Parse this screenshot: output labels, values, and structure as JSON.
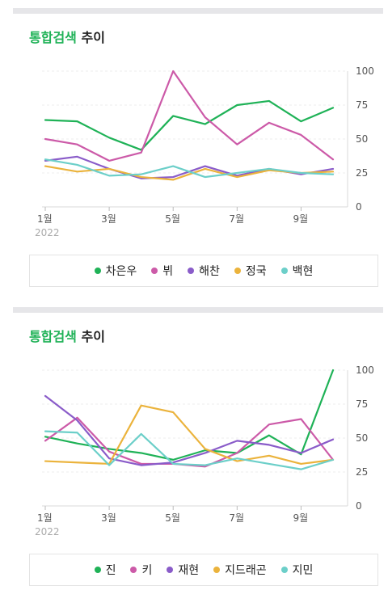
{
  "colors": {
    "green": "#1fb257",
    "pink": "#cc5aa8",
    "purple": "#8a5cc9",
    "yellow": "#ebb33c",
    "teal": "#6ccfc9"
  },
  "chart_data": [
    {
      "type": "line",
      "title": "통합검색 추이",
      "title_accent": "통합검색",
      "title_rest": "추이",
      "ylim": [
        0,
        100
      ],
      "yticks": [
        0,
        25,
        50,
        75,
        100
      ],
      "x": [
        1,
        2,
        3,
        4,
        5,
        6,
        7,
        8,
        9,
        10
      ],
      "xtick_positions": [
        1,
        3,
        5,
        7,
        9
      ],
      "xtick_labels": [
        "1월",
        "3월",
        "5월",
        "7월",
        "9월"
      ],
      "xtick_sublabel": "2022",
      "series": [
        {
          "name": "차은우",
          "color": "#1fb257",
          "values": [
            64,
            63,
            51,
            42,
            67,
            61,
            75,
            78,
            63,
            73
          ]
        },
        {
          "name": "뷔",
          "color": "#cc5aa8",
          "values": [
            50,
            46,
            34,
            40,
            100,
            66,
            46,
            62,
            53,
            35
          ]
        },
        {
          "name": "해찬",
          "color": "#8a5cc9",
          "values": [
            34,
            37,
            28,
            21,
            22,
            30,
            23,
            28,
            24,
            28
          ]
        },
        {
          "name": "정국",
          "color": "#ebb33c",
          "values": [
            30,
            26,
            28,
            22,
            20,
            28,
            22,
            27,
            25,
            26
          ]
        },
        {
          "name": "백현",
          "color": "#6ccfc9",
          "values": [
            35,
            31,
            23,
            24,
            30,
            22,
            25,
            28,
            25,
            24
          ]
        }
      ]
    },
    {
      "type": "line",
      "title": "통합검색 추이",
      "title_accent": "통합검색",
      "title_rest": "추이",
      "ylim": [
        0,
        100
      ],
      "yticks": [
        0,
        25,
        50,
        75,
        100
      ],
      "x": [
        1,
        2,
        3,
        4,
        5,
        6,
        7,
        8,
        9,
        10
      ],
      "xtick_positions": [
        1,
        3,
        5,
        7,
        9
      ],
      "xtick_labels": [
        "1월",
        "3월",
        "5월",
        "7월",
        "9월"
      ],
      "xtick_sublabel": "2022",
      "series": [
        {
          "name": "진",
          "color": "#1fb257",
          "values": [
            51,
            46,
            42,
            39,
            34,
            41,
            39,
            52,
            38,
            100
          ]
        },
        {
          "name": "키",
          "color": "#cc5aa8",
          "values": [
            48,
            65,
            40,
            31,
            31,
            29,
            39,
            60,
            64,
            34
          ]
        },
        {
          "name": "재현",
          "color": "#8a5cc9",
          "values": [
            81,
            63,
            35,
            30,
            32,
            39,
            48,
            45,
            39,
            49
          ]
        },
        {
          "name": "지드래곤",
          "color": "#ebb33c",
          "values": [
            33,
            32,
            31,
            74,
            69,
            42,
            33,
            37,
            31,
            34
          ]
        },
        {
          "name": "지민",
          "color": "#6ccfc9",
          "values": [
            55,
            54,
            30,
            53,
            31,
            30,
            35,
            31,
            27,
            34
          ]
        }
      ]
    }
  ]
}
